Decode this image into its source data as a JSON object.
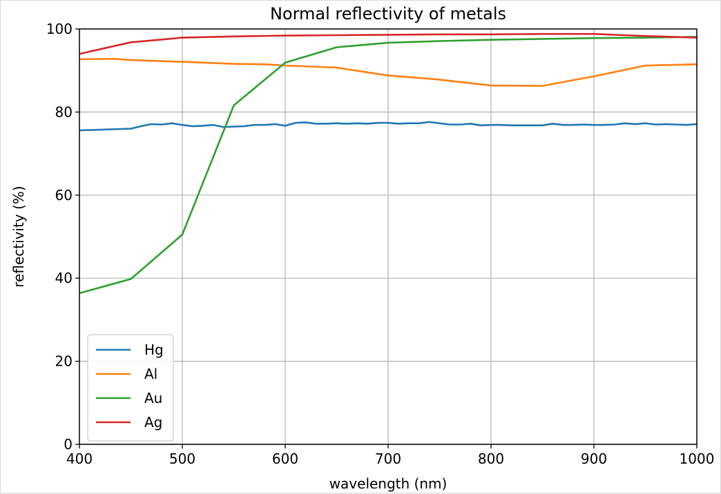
{
  "chart_data": {
    "type": "line",
    "title": "Normal reflectivity of metals",
    "xlabel": "wavelength (nm)",
    "ylabel": "reflectivity (%)",
    "xlim": [
      400,
      1000
    ],
    "ylim": [
      0,
      100
    ],
    "xticks": [
      400,
      500,
      600,
      700,
      800,
      900,
      1000
    ],
    "yticks": [
      0,
      20,
      40,
      60,
      80,
      100
    ],
    "grid": true,
    "legend_position": "lower-left",
    "series": [
      {
        "name": "Hg",
        "color": "#1f77b4",
        "x": [
          400,
          450,
          460,
          470,
          480,
          490,
          500,
          510,
          520,
          530,
          540,
          550,
          560,
          570,
          580,
          590,
          600,
          610,
          620,
          630,
          640,
          650,
          660,
          670,
          680,
          690,
          700,
          710,
          720,
          730,
          740,
          750,
          760,
          770,
          780,
          790,
          800,
          810,
          820,
          830,
          840,
          850,
          860,
          870,
          880,
          890,
          900,
          910,
          920,
          930,
          940,
          950,
          960,
          970,
          980,
          990,
          1000
        ],
        "y": [
          75.6,
          76.0,
          76.6,
          77.1,
          77.0,
          77.3,
          76.9,
          76.6,
          76.7,
          76.9,
          76.4,
          76.5,
          76.6,
          76.9,
          76.9,
          77.1,
          76.7,
          77.4,
          77.5,
          77.2,
          77.2,
          77.3,
          77.2,
          77.3,
          77.2,
          77.4,
          77.4,
          77.2,
          77.3,
          77.3,
          77.6,
          77.3,
          77.0,
          77.0,
          77.2,
          76.8,
          76.9,
          76.9,
          76.8,
          76.8,
          76.8,
          76.8,
          77.2,
          76.9,
          76.9,
          77.0,
          76.9,
          76.9,
          77.0,
          77.3,
          77.1,
          77.3,
          77.0,
          77.1,
          77.0,
          76.9,
          77.1
        ]
      },
      {
        "name": "Al",
        "color": "#ff7f0e",
        "x": [
          400,
          435,
          450,
          500,
          550,
          580,
          600,
          650,
          700,
          750,
          800,
          850,
          900,
          950,
          1000
        ],
        "y": [
          92.7,
          92.8,
          92.5,
          92.1,
          91.6,
          91.5,
          91.2,
          90.7,
          88.8,
          87.8,
          86.4,
          86.3,
          88.6,
          91.2,
          91.5
        ]
      },
      {
        "name": "Au",
        "color": "#2ca02c",
        "x": [
          400,
          450,
          500,
          550,
          600,
          650,
          700,
          750,
          800,
          850,
          900,
          950,
          1000
        ],
        "y": [
          36.4,
          39.8,
          50.5,
          81.6,
          91.9,
          95.6,
          96.7,
          97.1,
          97.4,
          97.6,
          97.8,
          97.9,
          98.1
        ]
      },
      {
        "name": "Ag",
        "color": "#d62728",
        "x": [
          400,
          450,
          500,
          550,
          600,
          650,
          700,
          750,
          800,
          850,
          900,
          950,
          1000
        ],
        "y": [
          94.0,
          96.8,
          97.9,
          98.2,
          98.4,
          98.5,
          98.6,
          98.7,
          98.7,
          98.8,
          98.8,
          98.3,
          97.9
        ]
      }
    ]
  }
}
